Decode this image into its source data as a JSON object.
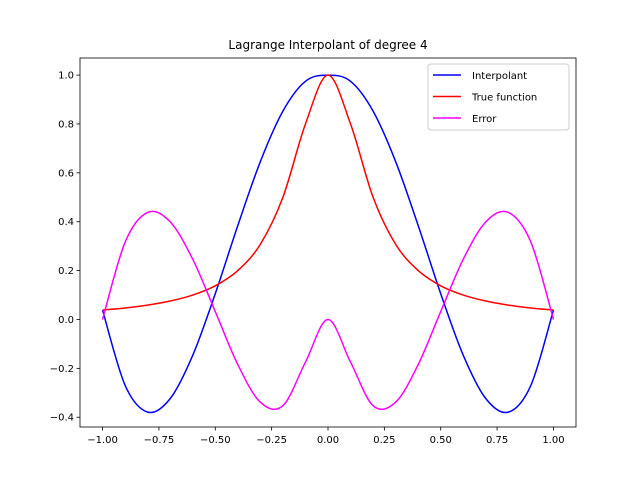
{
  "chart_data": {
    "type": "line",
    "title": "Lagrange Interpolant of degree 4",
    "xlabel": "",
    "ylabel": "",
    "xlim": [
      -1.1,
      1.1
    ],
    "ylim": [
      -0.44,
      1.07
    ],
    "xticks": [
      -1.0,
      -0.75,
      -0.5,
      -0.25,
      0.0,
      0.25,
      0.5,
      0.75,
      1.0
    ],
    "xtick_labels": [
      "−1.00",
      "−0.75",
      "−0.50",
      "−0.25",
      "0.00",
      "0.25",
      "0.50",
      "0.75",
      "1.00"
    ],
    "yticks": [
      -0.4,
      -0.2,
      0.0,
      0.2,
      0.4,
      0.6,
      0.8,
      1.0
    ],
    "ytick_labels": [
      "−0.4",
      "−0.2",
      "0.0",
      "0.2",
      "0.4",
      "0.6",
      "0.8",
      "1.0"
    ],
    "grid": false,
    "legend_position": "top-right",
    "x": [
      -1.0,
      -0.9,
      -0.8,
      -0.7,
      -0.6,
      -0.5,
      -0.4,
      -0.3,
      -0.2,
      -0.1,
      0.0,
      0.1,
      0.2,
      0.3,
      0.4,
      0.5,
      0.6,
      0.7,
      0.8,
      0.9,
      1.0
    ],
    "series": [
      {
        "name": "Interpolant",
        "color": "#0000ff",
        "values": [
          0.0385,
          -0.2692,
          -0.3791,
          -0.324,
          -0.1467,
          0.1055,
          0.3846,
          0.6463,
          0.8528,
          0.9747,
          1.0,
          0.9747,
          0.8528,
          0.6463,
          0.3846,
          0.1055,
          -0.1467,
          -0.324,
          -0.3791,
          -0.2692,
          0.0385
        ]
      },
      {
        "name": "True function",
        "color": "#ff0000",
        "values": [
          0.0385,
          0.0471,
          0.0588,
          0.0755,
          0.1,
          0.1379,
          0.2,
          0.3077,
          0.5,
          0.8,
          1.0,
          0.8,
          0.5,
          0.3077,
          0.2,
          0.1379,
          0.1,
          0.0755,
          0.0588,
          0.0471,
          0.0385
        ]
      },
      {
        "name": "Error",
        "color": "#ff00ff",
        "values": [
          0.0,
          0.3163,
          0.4379,
          0.3995,
          0.2467,
          0.0324,
          -0.1846,
          -0.3386,
          -0.3528,
          -0.1747,
          0.0,
          -0.1747,
          -0.3528,
          -0.3386,
          -0.1846,
          0.0324,
          0.2467,
          0.3995,
          0.4379,
          0.3163,
          0.0
        ]
      }
    ]
  }
}
